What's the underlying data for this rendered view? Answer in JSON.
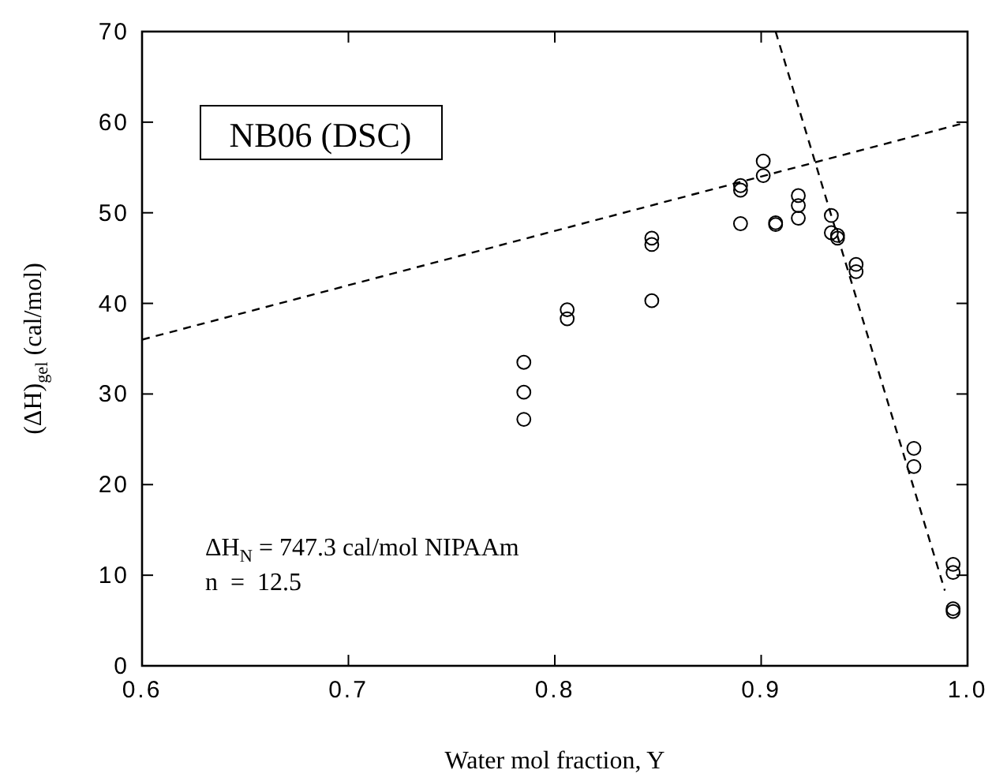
{
  "chart_data": {
    "type": "scatter",
    "xlabel": "Water mol fraction, Y",
    "ylabel": "(ΔH)$_{gel}$ (cal/mol)",
    "xlim": [
      0.6,
      1.0
    ],
    "ylim": [
      0,
      70
    ],
    "xticks": [
      {
        "value": 0.6,
        "label": "0.6"
      },
      {
        "value": 0.7,
        "label": "0.7"
      },
      {
        "value": 0.8,
        "label": "0.8"
      },
      {
        "value": 0.9,
        "label": "0.9"
      },
      {
        "value": 1.0,
        "label": "1.0"
      }
    ],
    "yticks": [
      0,
      10,
      20,
      30,
      40,
      50,
      60,
      70
    ],
    "grid": false,
    "marker": "circle",
    "series": [
      {
        "color": "#000000",
        "x": [
          0.785,
          0.785,
          0.785,
          0.806,
          0.806,
          0.847,
          0.847,
          0.847,
          0.89,
          0.89,
          0.89,
          0.901,
          0.901,
          0.907,
          0.907,
          0.918,
          0.918,
          0.918,
          0.934,
          0.934,
          0.937,
          0.937,
          0.946,
          0.946,
          0.974,
          0.974,
          0.993,
          0.993,
          0.993,
          0.993
        ],
        "values": [
          33.5,
          30.2,
          27.2,
          39.3,
          38.3,
          47.2,
          46.5,
          40.3,
          53.0,
          52.5,
          48.8,
          55.7,
          54.1,
          48.9,
          48.7,
          51.9,
          50.8,
          49.4,
          49.7,
          47.8,
          47.5,
          47.2,
          44.3,
          43.5,
          24.0,
          22.0,
          11.2,
          10.3,
          6.3,
          6.0
        ]
      },
      {
        "type": "line",
        "color": "#000000",
        "line_style": "dashed",
        "marker": "none",
        "x": [
          0.6,
          1.0
        ],
        "values": [
          36,
          60
        ]
      },
      {
        "type": "line",
        "color": "#000000",
        "line_style": "dashed",
        "marker": "none",
        "x": [
          0.907,
          0.989
        ],
        "values": [
          70,
          8.3
        ]
      }
    ],
    "annotations": [
      "NB06 (DSC)",
      "ΔH$_{N}$ = 747.3 cal/mol NIPAAm",
      "n  =  12.5"
    ]
  }
}
